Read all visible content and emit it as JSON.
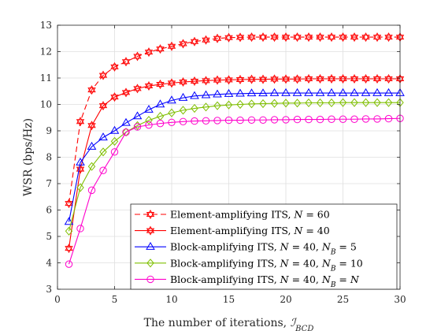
{
  "chart_data": {
    "type": "line",
    "xlabel": "The number of iterations, ",
    "xlabel_symbol": "ℐ",
    "xlabel_subscript": "BCD",
    "ylabel": "WSR (bps/Hz)",
    "xlim": [
      0,
      30
    ],
    "ylim": [
      3,
      13
    ],
    "xticks": [
      0,
      5,
      10,
      15,
      20,
      25,
      30
    ],
    "yticks": [
      3,
      4,
      5,
      6,
      7,
      8,
      9,
      10,
      11,
      12,
      13
    ],
    "grid": true,
    "legend_position": "bottom-right",
    "x": [
      1,
      2,
      3,
      4,
      5,
      6,
      7,
      8,
      9,
      10,
      11,
      12,
      13,
      14,
      15,
      16,
      17,
      18,
      19,
      20,
      21,
      22,
      23,
      24,
      25,
      26,
      27,
      28,
      29,
      30
    ],
    "series": [
      {
        "name": "Element-amplifying ITS, N = 60",
        "legend_parts": [
          "Element-amplifying ITS, ",
          "N",
          " = 60"
        ],
        "color": "#ff0000",
        "dashed": true,
        "marker": "hexagram",
        "values": [
          6.25,
          9.35,
          10.55,
          11.1,
          11.42,
          11.62,
          11.82,
          11.98,
          12.1,
          12.2,
          12.3,
          12.38,
          12.44,
          12.5,
          12.53,
          12.54,
          12.55,
          12.55,
          12.55,
          12.55,
          12.55,
          12.55,
          12.55,
          12.55,
          12.55,
          12.55,
          12.55,
          12.55,
          12.55,
          12.55
        ]
      },
      {
        "name": "Element-amplifying ITS, N = 40",
        "legend_parts": [
          "Element-amplifying ITS, ",
          "N",
          " = 40"
        ],
        "color": "#ff0000",
        "dashed": false,
        "marker": "hexagram",
        "values": [
          4.55,
          7.55,
          9.2,
          9.95,
          10.28,
          10.45,
          10.6,
          10.7,
          10.76,
          10.81,
          10.85,
          10.88,
          10.9,
          10.92,
          10.93,
          10.94,
          10.95,
          10.95,
          10.96,
          10.96,
          10.96,
          10.97,
          10.97,
          10.97,
          10.97,
          10.97,
          10.97,
          10.97,
          10.97,
          10.97
        ]
      },
      {
        "name": "Block-amplifying ITS, N = 40, N_B = 5",
        "legend_parts": [
          "Block-amplifying ITS, ",
          "N",
          " = 40, ",
          "N",
          "B",
          " = 5"
        ],
        "color": "#0000ff",
        "dashed": false,
        "marker": "triangle",
        "values": [
          5.55,
          7.8,
          8.4,
          8.75,
          9.0,
          9.3,
          9.55,
          9.8,
          10.0,
          10.15,
          10.25,
          10.32,
          10.35,
          10.38,
          10.4,
          10.41,
          10.42,
          10.42,
          10.43,
          10.43,
          10.43,
          10.43,
          10.43,
          10.43,
          10.43,
          10.43,
          10.43,
          10.43,
          10.43,
          10.43
        ]
      },
      {
        "name": "Block-amplifying ITS, N = 40, N_B = 10",
        "legend_parts": [
          "Block-amplifying ITS, ",
          "N",
          " = 40, ",
          "N",
          "B",
          " = 10"
        ],
        "color": "#7fbf00",
        "dashed": false,
        "marker": "diamond",
        "values": [
          5.2,
          6.85,
          7.65,
          8.2,
          8.6,
          8.95,
          9.2,
          9.4,
          9.55,
          9.68,
          9.78,
          9.85,
          9.9,
          9.95,
          9.98,
          10.0,
          10.02,
          10.03,
          10.04,
          10.05,
          10.05,
          10.06,
          10.06,
          10.06,
          10.07,
          10.07,
          10.07,
          10.07,
          10.07,
          10.07
        ]
      },
      {
        "name": "Block-amplifying ITS, N = 40, N_B = N",
        "legend_parts": [
          "Block-amplifying ITS, ",
          "N",
          " = 40, ",
          "N",
          "B",
          " = ",
          "N"
        ],
        "color": "#ff00cc",
        "dashed": false,
        "marker": "circle",
        "values": [
          3.95,
          5.3,
          6.75,
          7.5,
          8.2,
          8.95,
          9.15,
          9.22,
          9.28,
          9.32,
          9.35,
          9.37,
          9.38,
          9.39,
          9.4,
          9.4,
          9.41,
          9.41,
          9.42,
          9.42,
          9.43,
          9.43,
          9.43,
          9.44,
          9.44,
          9.44,
          9.45,
          9.45,
          9.46,
          9.47
        ]
      }
    ]
  }
}
